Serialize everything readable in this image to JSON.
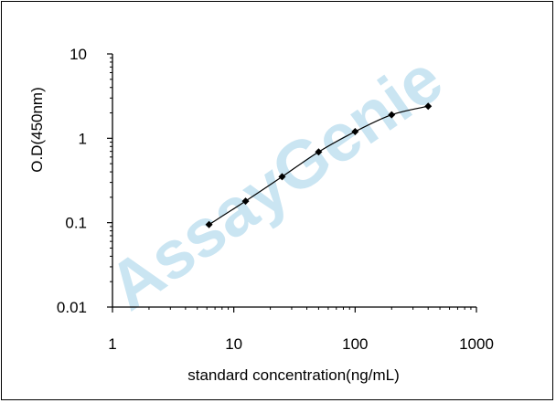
{
  "chart_data": {
    "type": "scatter",
    "xlabel": "standard concentration(ng/mL)",
    "ylabel": "O.D(450nm)",
    "xscale": "log",
    "yscale": "log",
    "xlim": [
      1,
      1000
    ],
    "ylim": [
      0.01,
      10
    ],
    "x_tick_labels": [
      "1",
      "10",
      "100",
      "1000"
    ],
    "y_tick_labels": [
      "0.01",
      "0.1",
      "1",
      "10"
    ],
    "grid": false,
    "legend": "none",
    "series": [
      {
        "x": [
          6.25,
          12.5,
          25,
          50,
          100,
          200,
          400
        ],
        "y": [
          0.095,
          0.18,
          0.35,
          0.69,
          1.2,
          1.9,
          2.4
        ],
        "marker": "diamond",
        "fitted_curve": true
      }
    ],
    "watermark": "AssayGenie",
    "colors": {
      "axis": "#000000",
      "data": "#000000",
      "watermark": "#9fd0e8"
    }
  }
}
